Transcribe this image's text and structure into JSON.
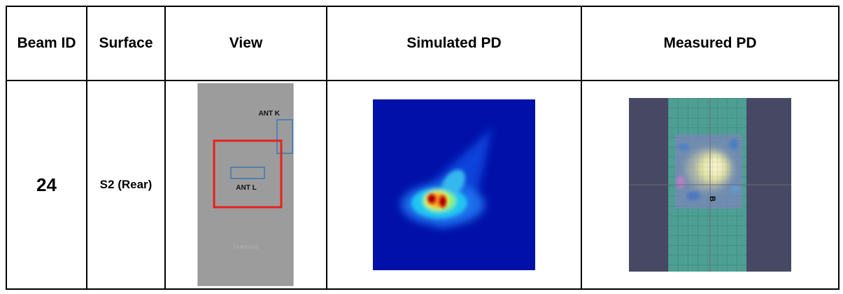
{
  "table": {
    "headers": {
      "beam_id": "Beam ID",
      "surface": "Surface",
      "view": "View",
      "simulated_pd": "Simulated PD",
      "measured_pd": "Measured PD"
    },
    "row": {
      "beam_id": "24",
      "surface": "S2 (Rear)",
      "view": {
        "antenna_k_label": "ANT K",
        "antenna_l_label": "ANT L",
        "brand_text": "SAMSUNG",
        "highlight_color": "#e8201c",
        "antenna_color": "#3a7ab8",
        "body_color": "#9c9c9c"
      },
      "simulated_pd": {
        "background_color": "#0010a8"
      },
      "measured_pd": {
        "marker_label": "B",
        "grid_color": "#4e9f93",
        "frame_color": "#474863"
      }
    }
  }
}
